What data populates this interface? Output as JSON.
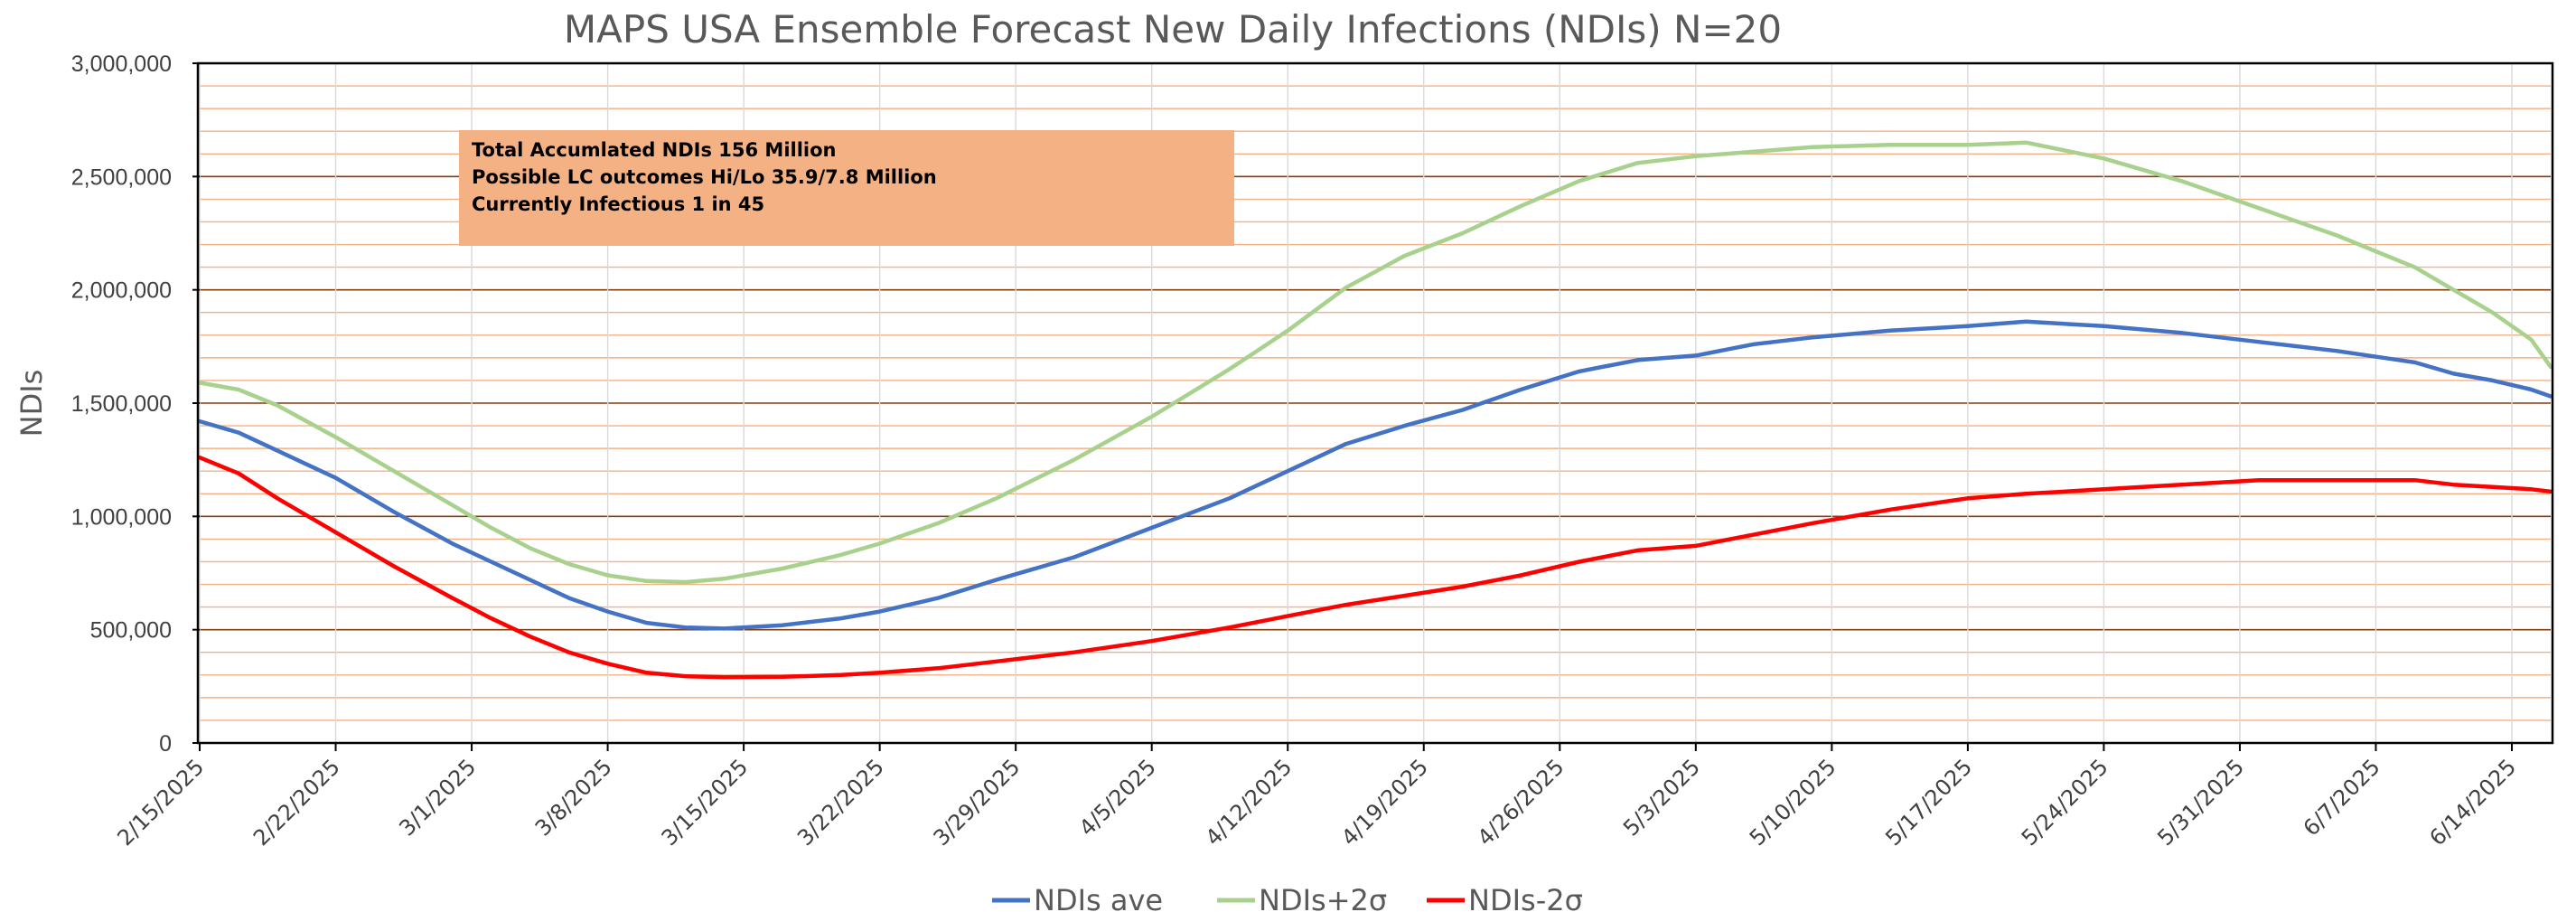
{
  "chart_data": {
    "type": "line",
    "title": "MAPS USA Ensemble Forecast New Daily Infections (NDIs) N=20",
    "xlabel": "",
    "ylabel": "NDIs",
    "xlim": [
      "2025-02-15",
      "2025-06-16"
    ],
    "ylim": [
      0,
      3000000
    ],
    "y_ticks": [
      0,
      500000,
      1000000,
      1500000,
      2000000,
      2500000,
      3000000
    ],
    "y_tick_labels": [
      "0",
      "500,000",
      "1,000,000",
      "1,500,000",
      "2,000,000",
      "2,500,000",
      "3,000,000"
    ],
    "x_ticks": [
      "2025-02-15",
      "2025-02-22",
      "2025-03-01",
      "2025-03-08",
      "2025-03-15",
      "2025-03-22",
      "2025-03-29",
      "2025-04-05",
      "2025-04-12",
      "2025-04-19",
      "2025-04-26",
      "2025-05-03",
      "2025-05-10",
      "2025-05-17",
      "2025-05-24",
      "2025-05-31",
      "2025-06-07",
      "2025-06-14"
    ],
    "x_tick_labels": [
      "2/15/2025",
      "2/22/2025",
      "3/1/2025",
      "3/8/2025",
      "3/15/2025",
      "3/22/2025",
      "3/29/2025",
      "4/5/2025",
      "4/12/2025",
      "4/19/2025",
      "4/26/2025",
      "5/3/2025",
      "5/10/2025",
      "5/17/2025",
      "5/24/2025",
      "5/31/2025",
      "6/7/2025",
      "6/14/2025"
    ],
    "grid": "horizontal minor lines orange, major lines dark brown",
    "legend_position": "bottom",
    "annotation": [
      "Total Accumlated NDIs 156 Million",
      "Possible LC outcomes Hi/Lo 35.9/7.8 Million",
      "Currently Infectious 1 in 45"
    ],
    "series": [
      {
        "name": "NDIs  ave",
        "color": "#4472c4",
        "points": [
          [
            "2025-02-15",
            1420000
          ],
          [
            "2025-02-17",
            1370000
          ],
          [
            "2025-02-19",
            1290000
          ],
          [
            "2025-02-22",
            1170000
          ],
          [
            "2025-02-25",
            1020000
          ],
          [
            "2025-02-28",
            880000
          ],
          [
            "2025-03-02",
            800000
          ],
          [
            "2025-03-04",
            720000
          ],
          [
            "2025-03-06",
            640000
          ],
          [
            "2025-03-08",
            580000
          ],
          [
            "2025-03-10",
            530000
          ],
          [
            "2025-03-12",
            510000
          ],
          [
            "2025-03-14",
            505000
          ],
          [
            "2025-03-17",
            520000
          ],
          [
            "2025-03-20",
            550000
          ],
          [
            "2025-03-22",
            580000
          ],
          [
            "2025-03-25",
            640000
          ],
          [
            "2025-03-28",
            720000
          ],
          [
            "2025-04-01",
            820000
          ],
          [
            "2025-04-05",
            950000
          ],
          [
            "2025-04-09",
            1080000
          ],
          [
            "2025-04-12",
            1200000
          ],
          [
            "2025-04-15",
            1320000
          ],
          [
            "2025-04-18",
            1400000
          ],
          [
            "2025-04-21",
            1470000
          ],
          [
            "2025-04-24",
            1560000
          ],
          [
            "2025-04-27",
            1640000
          ],
          [
            "2025-04-30",
            1690000
          ],
          [
            "2025-05-03",
            1710000
          ],
          [
            "2025-05-06",
            1760000
          ],
          [
            "2025-05-09",
            1790000
          ],
          [
            "2025-05-13",
            1820000
          ],
          [
            "2025-05-17",
            1840000
          ],
          [
            "2025-05-20",
            1860000
          ],
          [
            "2025-05-24",
            1840000
          ],
          [
            "2025-05-28",
            1810000
          ],
          [
            "2025-06-01",
            1770000
          ],
          [
            "2025-06-05",
            1730000
          ],
          [
            "2025-06-09",
            1680000
          ],
          [
            "2025-06-11",
            1630000
          ],
          [
            "2025-06-13",
            1600000
          ],
          [
            "2025-06-15",
            1560000
          ],
          [
            "2025-06-16",
            1530000
          ]
        ]
      },
      {
        "name": "NDIs+2σ",
        "color": "#a9d18e",
        "points": [
          [
            "2025-02-15",
            1590000
          ],
          [
            "2025-02-17",
            1560000
          ],
          [
            "2025-02-19",
            1490000
          ],
          [
            "2025-02-22",
            1350000
          ],
          [
            "2025-02-25",
            1200000
          ],
          [
            "2025-02-28",
            1050000
          ],
          [
            "2025-03-02",
            950000
          ],
          [
            "2025-03-04",
            860000
          ],
          [
            "2025-03-06",
            790000
          ],
          [
            "2025-03-08",
            740000
          ],
          [
            "2025-03-10",
            715000
          ],
          [
            "2025-03-12",
            710000
          ],
          [
            "2025-03-14",
            725000
          ],
          [
            "2025-03-17",
            770000
          ],
          [
            "2025-03-20",
            830000
          ],
          [
            "2025-03-22",
            880000
          ],
          [
            "2025-03-25",
            970000
          ],
          [
            "2025-03-28",
            1080000
          ],
          [
            "2025-04-01",
            1250000
          ],
          [
            "2025-04-05",
            1440000
          ],
          [
            "2025-04-09",
            1650000
          ],
          [
            "2025-04-12",
            1820000
          ],
          [
            "2025-04-15",
            2010000
          ],
          [
            "2025-04-18",
            2150000
          ],
          [
            "2025-04-21",
            2250000
          ],
          [
            "2025-04-24",
            2370000
          ],
          [
            "2025-04-27",
            2480000
          ],
          [
            "2025-04-30",
            2560000
          ],
          [
            "2025-05-03",
            2590000
          ],
          [
            "2025-05-06",
            2610000
          ],
          [
            "2025-05-09",
            2630000
          ],
          [
            "2025-05-13",
            2640000
          ],
          [
            "2025-05-17",
            2640000
          ],
          [
            "2025-05-20",
            2650000
          ],
          [
            "2025-05-24",
            2580000
          ],
          [
            "2025-05-28",
            2480000
          ],
          [
            "2025-06-01",
            2360000
          ],
          [
            "2025-06-05",
            2240000
          ],
          [
            "2025-06-09",
            2100000
          ],
          [
            "2025-06-11",
            2000000
          ],
          [
            "2025-06-13",
            1900000
          ],
          [
            "2025-06-15",
            1780000
          ],
          [
            "2025-06-16",
            1660000
          ]
        ]
      },
      {
        "name": "NDIs-2σ",
        "color": "#ff0000",
        "points": [
          [
            "2025-02-15",
            1260000
          ],
          [
            "2025-02-17",
            1190000
          ],
          [
            "2025-02-19",
            1080000
          ],
          [
            "2025-02-22",
            930000
          ],
          [
            "2025-02-25",
            780000
          ],
          [
            "2025-02-28",
            640000
          ],
          [
            "2025-03-02",
            550000
          ],
          [
            "2025-03-04",
            470000
          ],
          [
            "2025-03-06",
            400000
          ],
          [
            "2025-03-08",
            350000
          ],
          [
            "2025-03-10",
            310000
          ],
          [
            "2025-03-12",
            295000
          ],
          [
            "2025-03-14",
            290000
          ],
          [
            "2025-03-17",
            292000
          ],
          [
            "2025-03-20",
            300000
          ],
          [
            "2025-03-22",
            310000
          ],
          [
            "2025-03-25",
            330000
          ],
          [
            "2025-03-28",
            360000
          ],
          [
            "2025-04-01",
            400000
          ],
          [
            "2025-04-05",
            450000
          ],
          [
            "2025-04-09",
            510000
          ],
          [
            "2025-04-12",
            560000
          ],
          [
            "2025-04-15",
            610000
          ],
          [
            "2025-04-18",
            650000
          ],
          [
            "2025-04-21",
            690000
          ],
          [
            "2025-04-24",
            740000
          ],
          [
            "2025-04-27",
            800000
          ],
          [
            "2025-04-30",
            850000
          ],
          [
            "2025-05-03",
            870000
          ],
          [
            "2025-05-06",
            920000
          ],
          [
            "2025-05-09",
            970000
          ],
          [
            "2025-05-13",
            1030000
          ],
          [
            "2025-05-17",
            1080000
          ],
          [
            "2025-05-20",
            1100000
          ],
          [
            "2025-05-24",
            1120000
          ],
          [
            "2025-05-28",
            1140000
          ],
          [
            "2025-06-01",
            1160000
          ],
          [
            "2025-06-05",
            1160000
          ],
          [
            "2025-06-09",
            1160000
          ],
          [
            "2025-06-11",
            1140000
          ],
          [
            "2025-06-13",
            1130000
          ],
          [
            "2025-06-15",
            1120000
          ],
          [
            "2025-06-16",
            1110000
          ]
        ]
      }
    ]
  }
}
